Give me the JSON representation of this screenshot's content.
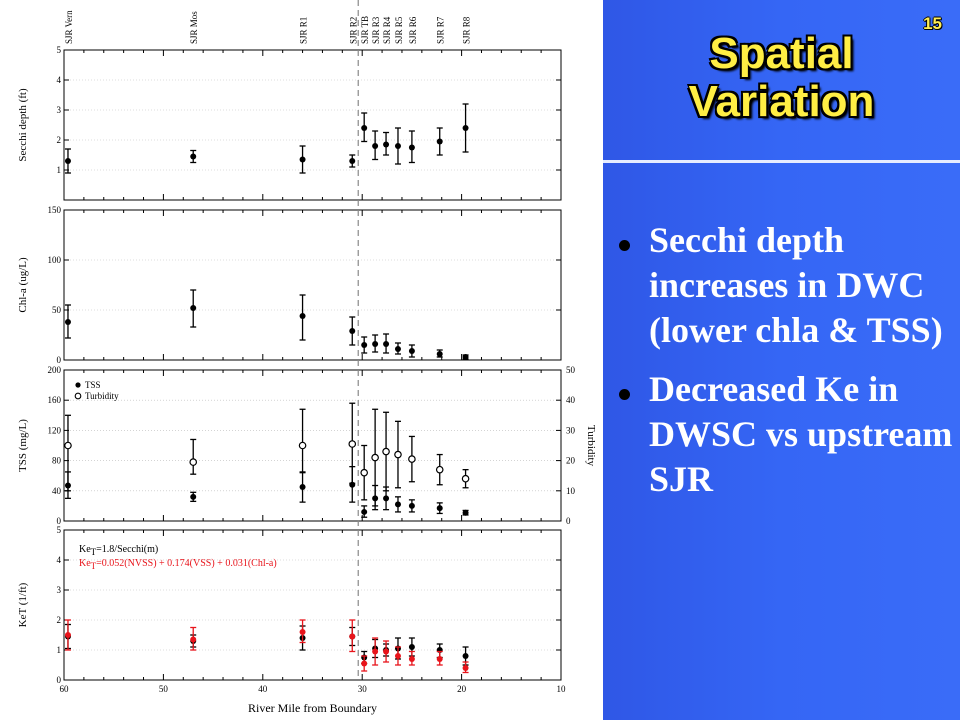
{
  "slide": {
    "number": "15",
    "title_line1": "Spatial",
    "title_line2": "Variation",
    "bullets": [
      "Secchi depth increases in DWC (lower chla & TSS)",
      "Decreased Ke in DWSC vs upstream SJR"
    ],
    "colors": {
      "panel": "#3566f5",
      "title": "#ffee44",
      "bullet_text": "#ffffff"
    }
  },
  "chart_data": {
    "type": "scatter",
    "xlabel": "River Mile from Boundary",
    "xlim": [
      60,
      10
    ],
    "xticks": [
      "60",
      "50",
      "40",
      "30",
      "20",
      "10"
    ],
    "xtick_values": [
      60,
      50,
      40,
      30,
      20,
      10
    ],
    "reference_line_x": 30.4,
    "stations": [
      {
        "label": "SJR Vern",
        "x": 59.6
      },
      {
        "label": "SJR Mos",
        "x": 47.0
      },
      {
        "label": "SJR R1",
        "x": 36.0
      },
      {
        "label": "SJR R2",
        "x": 31.0
      },
      {
        "label": "SJR TB",
        "x": 29.8
      },
      {
        "label": "SJR R3",
        "x": 28.7
      },
      {
        "label": "SJR R4",
        "x": 27.6
      },
      {
        "label": "SJR R5",
        "x": 26.4
      },
      {
        "label": "SJR R6",
        "x": 25.0
      },
      {
        "label": "SJR R7",
        "x": 22.2
      },
      {
        "label": "SJR R8",
        "x": 19.6
      }
    ],
    "panels": [
      {
        "ylabel": "Secchi depth (ft)",
        "ylim": [
          0,
          5
        ],
        "yticks": [
          "1",
          "2",
          "3",
          "4",
          "5"
        ],
        "ytick_values": [
          1,
          2,
          3,
          4,
          5
        ],
        "series": [
          {
            "color": "#000000",
            "marker": "filled",
            "points": [
              {
                "x": 59.6,
                "y": 1.3,
                "lo": 0.9,
                "hi": 1.7
              },
              {
                "x": 47.0,
                "y": 1.45,
                "lo": 1.25,
                "hi": 1.65
              },
              {
                "x": 36.0,
                "y": 1.35,
                "lo": 0.9,
                "hi": 1.8
              },
              {
                "x": 31.0,
                "y": 1.3,
                "lo": 1.1,
                "hi": 1.5
              },
              {
                "x": 29.8,
                "y": 2.4,
                "lo": 1.95,
                "hi": 2.9
              },
              {
                "x": 28.7,
                "y": 1.8,
                "lo": 1.35,
                "hi": 2.3
              },
              {
                "x": 27.6,
                "y": 1.85,
                "lo": 1.5,
                "hi": 2.25
              },
              {
                "x": 26.4,
                "y": 1.8,
                "lo": 1.2,
                "hi": 2.4
              },
              {
                "x": 25.0,
                "y": 1.75,
                "lo": 1.25,
                "hi": 2.3
              },
              {
                "x": 22.2,
                "y": 1.95,
                "lo": 1.5,
                "hi": 2.4
              },
              {
                "x": 19.6,
                "y": 2.4,
                "lo": 1.6,
                "hi": 3.2
              }
            ]
          }
        ]
      },
      {
        "ylabel": "Chl-a (ug/L)",
        "ylim": [
          0,
          150
        ],
        "yticks": [
          "0",
          "50",
          "100",
          "150"
        ],
        "ytick_values": [
          0,
          50,
          100,
          150
        ],
        "series": [
          {
            "color": "#000000",
            "marker": "filled",
            "points": [
              {
                "x": 59.6,
                "y": 38,
                "lo": 22,
                "hi": 55
              },
              {
                "x": 47.0,
                "y": 52,
                "lo": 33,
                "hi": 70
              },
              {
                "x": 36.0,
                "y": 44,
                "lo": 20,
                "hi": 65
              },
              {
                "x": 31.0,
                "y": 29,
                "lo": 15,
                "hi": 43
              },
              {
                "x": 29.8,
                "y": 15,
                "lo": 7,
                "hi": 23
              },
              {
                "x": 28.7,
                "y": 16,
                "lo": 8,
                "hi": 25
              },
              {
                "x": 27.6,
                "y": 16,
                "lo": 7,
                "hi": 26
              },
              {
                "x": 26.4,
                "y": 11,
                "lo": 6,
                "hi": 17
              },
              {
                "x": 25.0,
                "y": 9,
                "lo": 3,
                "hi": 15
              },
              {
                "x": 22.2,
                "y": 6,
                "lo": 3,
                "hi": 10
              },
              {
                "x": 19.6,
                "y": 3,
                "lo": 1,
                "hi": 5
              }
            ]
          }
        ]
      },
      {
        "ylabel": "TSS (mg/L)",
        "ylabel_right": "Turbidity",
        "ylim": [
          0,
          200
        ],
        "yticks": [
          "0",
          "40",
          "80",
          "120",
          "160",
          "200"
        ],
        "ytick_values": [
          0,
          40,
          80,
          120,
          160,
          200
        ],
        "ylim_right": [
          0,
          50
        ],
        "yticks_right": [
          "0",
          "10",
          "20",
          "30",
          "40",
          "50"
        ],
        "ytick_values_right": [
          0,
          10,
          20,
          30,
          40,
          50
        ],
        "legend": [
          "TSS",
          "Turbidity"
        ],
        "series": [
          {
            "name": "TSS",
            "color": "#000000",
            "marker": "filled",
            "points": [
              {
                "x": 59.6,
                "y": 47,
                "lo": 30,
                "hi": 65
              },
              {
                "x": 47.0,
                "y": 32,
                "lo": 26,
                "hi": 38
              },
              {
                "x": 36.0,
                "y": 45,
                "lo": 25,
                "hi": 65
              },
              {
                "x": 31.0,
                "y": 48,
                "lo": 25,
                "hi": 72
              },
              {
                "x": 29.8,
                "y": 12,
                "lo": 5,
                "hi": 20
              },
              {
                "x": 28.7,
                "y": 30,
                "lo": 15,
                "hi": 47
              },
              {
                "x": 27.6,
                "y": 30,
                "lo": 15,
                "hi": 45
              },
              {
                "x": 26.4,
                "y": 22,
                "lo": 12,
                "hi": 32
              },
              {
                "x": 25.0,
                "y": 20,
                "lo": 12,
                "hi": 28
              },
              {
                "x": 22.2,
                "y": 17,
                "lo": 10,
                "hi": 24
              },
              {
                "x": 19.6,
                "y": 11,
                "lo": 8,
                "hi": 14
              }
            ]
          },
          {
            "name": "Turbidity",
            "color": "#000000",
            "marker": "open",
            "axis": "right",
            "points": [
              {
                "x": 59.6,
                "y": 25,
                "lo": 10,
                "hi": 35
              },
              {
                "x": 47.0,
                "y": 19.5,
                "lo": 15.5,
                "hi": 27
              },
              {
                "x": 36.0,
                "y": 25,
                "lo": 16,
                "hi": 37
              },
              {
                "x": 31.0,
                "y": 25.5,
                "lo": 12.5,
                "hi": 39
              },
              {
                "x": 29.8,
                "y": 16,
                "lo": 7,
                "hi": 25
              },
              {
                "x": 28.7,
                "y": 21,
                "lo": 5,
                "hi": 37
              },
              {
                "x": 27.6,
                "y": 23,
                "lo": 10,
                "hi": 36
              },
              {
                "x": 26.4,
                "y": 22,
                "lo": 11,
                "hi": 33
              },
              {
                "x": 25.0,
                "y": 20.5,
                "lo": 13,
                "hi": 28
              },
              {
                "x": 22.2,
                "y": 17,
                "lo": 12,
                "hi": 22
              },
              {
                "x": 19.6,
                "y": 14,
                "lo": 11,
                "hi": 17
              }
            ]
          }
        ]
      },
      {
        "ylabel": "KeT (1/ft)",
        "ylim": [
          0,
          5
        ],
        "yticks": [
          "0",
          "1",
          "2",
          "3",
          "4",
          "5"
        ],
        "ytick_values": [
          0,
          1,
          2,
          3,
          4,
          5
        ],
        "annotation_black": "Ke_T=1.8/Secchi(m)",
        "annotation_black_text": "Ke",
        "annotation_black_sub": "T",
        "annotation_black_rest": "=1.8/Secchi(m)",
        "annotation_red_text": "Ke",
        "annotation_red_sub": "T",
        "annotation_red_rest": "=0.052(NVSS) + 0.174(VSS) + 0.031(Chl-a)",
        "series": [
          {
            "color": "#000000",
            "marker": "filled",
            "points": [
              {
                "x": 59.6,
                "y": 1.45,
                "lo": 1.05,
                "hi": 1.85
              },
              {
                "x": 47.0,
                "y": 1.3,
                "lo": 1.1,
                "hi": 1.5
              },
              {
                "x": 36.0,
                "y": 1.4,
                "lo": 1.0,
                "hi": 1.8
              },
              {
                "x": 31.0,
                "y": 1.45,
                "lo": 1.15,
                "hi": 1.75
              },
              {
                "x": 29.8,
                "y": 0.75,
                "lo": 0.55,
                "hi": 0.95
              },
              {
                "x": 28.7,
                "y": 1.05,
                "lo": 0.75,
                "hi": 1.35
              },
              {
                "x": 27.6,
                "y": 1.0,
                "lo": 0.8,
                "hi": 1.2
              },
              {
                "x": 26.4,
                "y": 1.05,
                "lo": 0.7,
                "hi": 1.4
              },
              {
                "x": 25.0,
                "y": 1.1,
                "lo": 0.8,
                "hi": 1.4
              },
              {
                "x": 22.2,
                "y": 1.0,
                "lo": 0.75,
                "hi": 1.2
              },
              {
                "x": 19.6,
                "y": 0.8,
                "lo": 0.5,
                "hi": 1.1
              }
            ]
          },
          {
            "color": "#e8141b",
            "marker": "filled",
            "points": [
              {
                "x": 59.6,
                "y": 1.5,
                "lo": 1.0,
                "hi": 2.0
              },
              {
                "x": 47.0,
                "y": 1.35,
                "lo": 1.0,
                "hi": 1.75
              },
              {
                "x": 36.0,
                "y": 1.6,
                "lo": 1.25,
                "hi": 2.0
              },
              {
                "x": 31.0,
                "y": 1.45,
                "lo": 0.95,
                "hi": 2.0
              },
              {
                "x": 29.8,
                "y": 0.55,
                "lo": 0.3,
                "hi": 0.8
              },
              {
                "x": 28.7,
                "y": 0.95,
                "lo": 0.5,
                "hi": 1.4
              },
              {
                "x": 27.6,
                "y": 0.95,
                "lo": 0.6,
                "hi": 1.3
              },
              {
                "x": 26.4,
                "y": 0.8,
                "lo": 0.5,
                "hi": 1.1
              },
              {
                "x": 25.0,
                "y": 0.7,
                "lo": 0.5,
                "hi": 0.95
              },
              {
                "x": 22.2,
                "y": 0.7,
                "lo": 0.5,
                "hi": 0.95
              },
              {
                "x": 19.6,
                "y": 0.4,
                "lo": 0.25,
                "hi": 0.6
              }
            ]
          }
        ]
      }
    ]
  }
}
